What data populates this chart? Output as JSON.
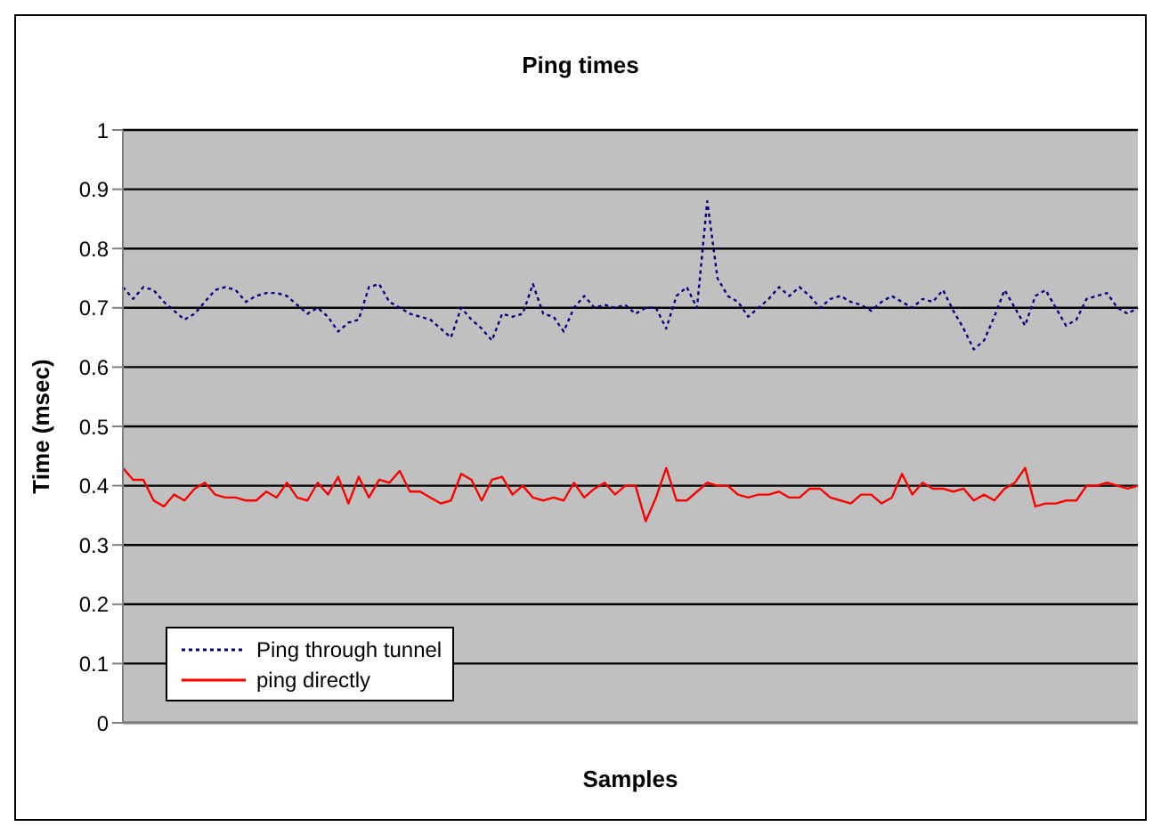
{
  "chart_data": {
    "type": "line",
    "title": "Ping times",
    "xlabel": "Samples",
    "ylabel": "Time (msec)",
    "categories": [
      null,
      null,
      null,
      null,
      null,
      null,
      null,
      null,
      null,
      null,
      null,
      null,
      null,
      null,
      null,
      null,
      null,
      null,
      null,
      null,
      null,
      null,
      null,
      null,
      null,
      null,
      null,
      null,
      null,
      null,
      null,
      null,
      null,
      null,
      null,
      null,
      null,
      null,
      null,
      null,
      null,
      null,
      null,
      null,
      null,
      null,
      null,
      null,
      null,
      null,
      null,
      null,
      null,
      null,
      null,
      null,
      null,
      null,
      null,
      null,
      null,
      null,
      null,
      null,
      null,
      null,
      null,
      null,
      null,
      null,
      null,
      null,
      null,
      null,
      null,
      null,
      null,
      null,
      null,
      null,
      null,
      null,
      null,
      null,
      null,
      null,
      null,
      null,
      null,
      null,
      null,
      null,
      null,
      null,
      null,
      null,
      null,
      null,
      null,
      null
    ],
    "series": [
      {
        "name": "Ping through tunnel",
        "color": "#000080",
        "line_style": "dotted",
        "values": [
          0.735,
          0.715,
          0.735,
          0.73,
          0.71,
          0.695,
          0.68,
          0.69,
          0.71,
          0.73,
          0.735,
          0.73,
          0.71,
          0.72,
          0.725,
          0.725,
          0.72,
          0.705,
          0.69,
          0.7,
          0.685,
          0.66,
          0.675,
          0.68,
          0.735,
          0.74,
          0.71,
          0.7,
          0.69,
          0.685,
          0.68,
          0.665,
          0.65,
          0.7,
          0.68,
          0.665,
          0.645,
          0.69,
          0.685,
          0.69,
          0.74,
          0.69,
          0.685,
          0.66,
          0.7,
          0.72,
          0.7,
          0.705,
          0.7,
          0.705,
          0.69,
          0.7,
          0.7,
          0.665,
          0.72,
          0.735,
          0.7,
          0.88,
          0.75,
          0.72,
          0.71,
          0.685,
          0.7,
          0.715,
          0.735,
          0.72,
          0.735,
          0.72,
          0.7,
          0.715,
          0.72,
          0.71,
          0.705,
          0.695,
          0.71,
          0.72,
          0.71,
          0.7,
          0.715,
          0.71,
          0.73,
          0.695,
          0.665,
          0.63,
          0.645,
          0.685,
          0.73,
          0.7,
          0.67,
          0.72,
          0.73,
          0.7,
          0.67,
          0.68,
          0.715,
          0.72,
          0.725,
          0.7,
          0.69,
          0.7
        ]
      },
      {
        "name": "ping directly",
        "color": "#ff0000",
        "line_style": "solid",
        "values": [
          0.43,
          0.41,
          0.41,
          0.375,
          0.365,
          0.385,
          0.375,
          0.395,
          0.405,
          0.385,
          0.38,
          0.38,
          0.375,
          0.375,
          0.39,
          0.38,
          0.405,
          0.38,
          0.375,
          0.405,
          0.385,
          0.415,
          0.37,
          0.415,
          0.38,
          0.41,
          0.405,
          0.425,
          0.39,
          0.39,
          0.38,
          0.37,
          0.375,
          0.42,
          0.41,
          0.375,
          0.41,
          0.415,
          0.385,
          0.4,
          0.38,
          0.375,
          0.38,
          0.375,
          0.405,
          0.38,
          0.395,
          0.405,
          0.385,
          0.4,
          0.4,
          0.34,
          0.38,
          0.43,
          0.375,
          0.375,
          0.39,
          0.405,
          0.4,
          0.4,
          0.385,
          0.38,
          0.385,
          0.385,
          0.39,
          0.38,
          0.38,
          0.395,
          0.395,
          0.38,
          0.375,
          0.37,
          0.385,
          0.385,
          0.37,
          0.38,
          0.42,
          0.385,
          0.405,
          0.395,
          0.395,
          0.39,
          0.395,
          0.375,
          0.385,
          0.375,
          0.395,
          0.405,
          0.43,
          0.365,
          0.37,
          0.37,
          0.375,
          0.375,
          0.4,
          0.4,
          0.405,
          0.4,
          0.395,
          0.4
        ]
      }
    ],
    "ylim": [
      0,
      1
    ],
    "yticks": [
      0,
      0.1,
      0.2,
      0.3,
      0.4,
      0.5,
      0.6,
      0.7,
      0.8,
      0.9,
      1
    ],
    "grid": "y",
    "legend": "bottom left",
    "marker": "none",
    "tick_labels": "y"
  }
}
